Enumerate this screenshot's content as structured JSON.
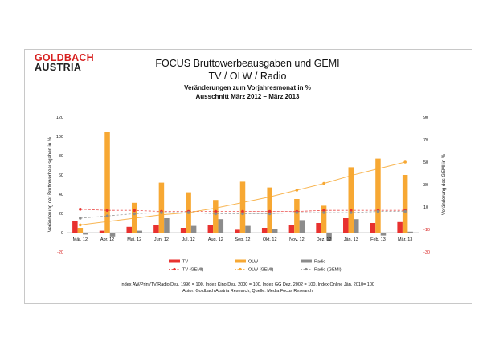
{
  "logo": {
    "line1": "GOLDBACH",
    "line2": "AUSTRIA"
  },
  "header": {
    "title": "FOCUS Bruttowerbeausgaben und GEMI",
    "subtitle": "TV / OLW / Radio",
    "caption_line1": "Veränderungen zum Vorjahresmonat in %",
    "caption_line2": "Ausschnitt  März 2012 – März 2013"
  },
  "footnote": {
    "line1": "Index AW/Print/TV/Radio Dez. 1996 = 100, Index Kino Dez. 2000 = 100, Index GG Dez. 2002 = 100, Index Online  Jän. 2010= 100",
    "line2": "Autor: Goldbach Austria Research, Quelle: Media Focus Research"
  },
  "colors": {
    "tv": "#e8312f",
    "olw": "#f7a833",
    "radio": "#8c8c8c",
    "axis_red": "#d7201f"
  },
  "chart_data": {
    "type": "bar",
    "categories": [
      "Mär. 12",
      "Apr. 12",
      "Mai. 12",
      "Jun. 12",
      "Jul. 12",
      "Aug. 12",
      "Sep. 12",
      "Okt. 12",
      "Nov. 12",
      "Dez. 12",
      "Jän. 13",
      "Feb. 13",
      "Mär. 13"
    ],
    "ylabel": "Veränderung der Bruttowerbeausgaben in %",
    "y2label": "Veränderung des GEMI in %",
    "ylim": [
      -20,
      120
    ],
    "y2lim": [
      -30,
      90
    ],
    "yticks": [
      -20,
      0,
      20,
      40,
      60,
      80,
      100,
      120
    ],
    "y2ticks": [
      -30,
      -10,
      10,
      30,
      50,
      70,
      90
    ],
    "legend_position": "bottom",
    "series": [
      {
        "name": "TV",
        "kind": "bar",
        "axis": "left",
        "values": [
          12,
          2,
          6,
          8,
          5,
          8,
          3,
          5,
          8,
          10,
          15,
          10,
          11
        ]
      },
      {
        "name": "OLW",
        "kind": "bar",
        "axis": "left",
        "values": [
          5,
          105,
          31,
          52,
          42,
          34,
          53,
          47,
          35,
          28,
          68,
          77,
          60
        ]
      },
      {
        "name": "Radio",
        "kind": "bar",
        "axis": "left",
        "values": [
          -2,
          -4,
          2,
          15,
          7,
          14,
          7,
          4,
          13,
          -8,
          14,
          -3,
          1
        ]
      },
      {
        "name": "TV (GEMI)",
        "kind": "line",
        "axis": "right",
        "values": [
          8,
          7,
          7,
          6,
          6,
          6,
          6,
          6,
          6,
          7,
          7,
          7,
          7
        ]
      },
      {
        "name": "OLW (GEMI)",
        "kind": "line",
        "axis": "right",
        "values": [
          -6,
          -3,
          0,
          3,
          5,
          9,
          14,
          19,
          25,
          31,
          38,
          44,
          50
        ]
      },
      {
        "name": "Radio (GEMI)",
        "kind": "line",
        "axis": "right",
        "values": [
          0,
          2,
          4,
          5,
          5,
          4,
          4,
          4,
          5,
          5,
          5,
          6,
          6
        ]
      }
    ]
  }
}
